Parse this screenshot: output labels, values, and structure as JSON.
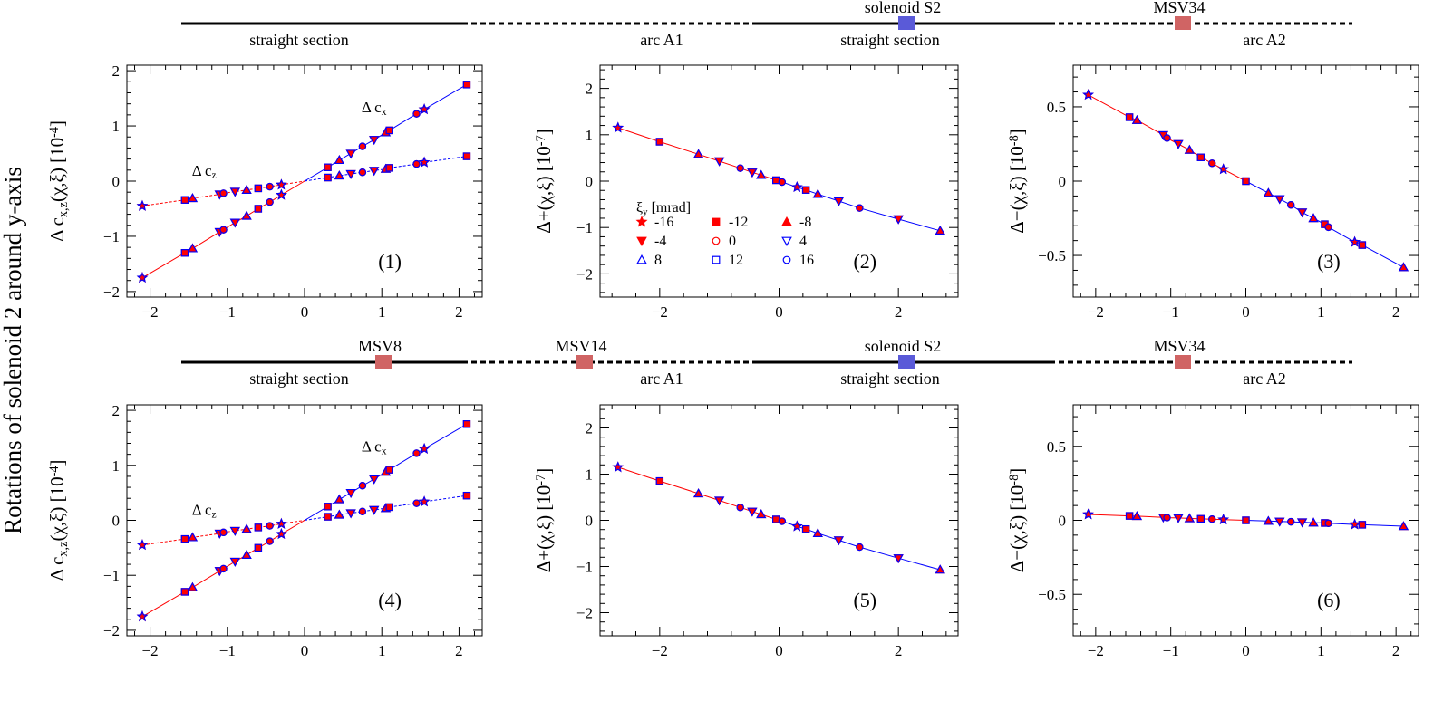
{
  "figure": {
    "row_title": "Rotations of solenoid 2 around y-axis"
  },
  "beamline": [
    {
      "segments": [
        {
          "label": "straight section",
          "style": "solid"
        },
        {
          "label": "arc A1",
          "style": "dashed"
        },
        {
          "label": "straight section",
          "style": "solid"
        },
        {
          "label": "arc A2",
          "style": "dashed"
        }
      ],
      "elements": [
        {
          "name": "solenoid S2",
          "color": "#5a5ad8"
        },
        {
          "name": "MSV34",
          "color": "#d06464"
        }
      ]
    },
    {
      "segments": [
        {
          "label": "straight section",
          "style": "solid"
        },
        {
          "label": "arc A1",
          "style": "dashed"
        },
        {
          "label": "straight section",
          "style": "solid"
        },
        {
          "label": "arc A2",
          "style": "dashed"
        }
      ],
      "elements": [
        {
          "name": "MSV8",
          "color": "#d06464"
        },
        {
          "name": "MSV14",
          "color": "#d06464"
        },
        {
          "name": "solenoid S2",
          "color": "#5a5ad8"
        },
        {
          "name": "MSV34",
          "color": "#d06464"
        }
      ]
    }
  ],
  "legend": {
    "title": "ξy [mrad]",
    "entries": [
      {
        "label": "-16",
        "marker": "star",
        "color": "#ff0000",
        "filled": true
      },
      {
        "label": "-12",
        "marker": "square",
        "color": "#ff0000",
        "filled": true
      },
      {
        "label": "-8",
        "marker": "tri-up",
        "color": "#ff0000",
        "filled": true
      },
      {
        "label": "-4",
        "marker": "tri-down",
        "color": "#ff0000",
        "filled": true
      },
      {
        "label": "0",
        "marker": "circle",
        "color": "#ff0000",
        "filled": false
      },
      {
        "label": "4",
        "marker": "tri-down",
        "color": "#0000ff",
        "filled": false
      },
      {
        "label": "8",
        "marker": "tri-up",
        "color": "#0000ff",
        "filled": false
      },
      {
        "label": "12",
        "marker": "square",
        "color": "#0000ff",
        "filled": false
      },
      {
        "label": "16",
        "marker": "circle",
        "color": "#0000ff",
        "filled": false
      }
    ]
  },
  "chart_data": [
    {
      "panel": "(1)",
      "type": "scatter",
      "ylabel": "Δ c_x,z(χ,ξ) [10^-4]",
      "xlim": [
        -2.3,
        2.3
      ],
      "ylim": [
        -2.1,
        2.1
      ],
      "xticks": [
        -2,
        -1,
        0,
        1,
        2
      ],
      "yticks": [
        -2,
        -1,
        0,
        1,
        2
      ],
      "annotations": [
        {
          "text": "Δ cx",
          "x": 0.9,
          "y": 1.25
        },
        {
          "text": "Δ cz",
          "x": -1.3,
          "y": 0.1
        }
      ],
      "series": [
        {
          "name": "Δ cx",
          "x": [
            -2.1,
            -1.55,
            -1.45,
            -1.1,
            -1.05,
            -0.9,
            -0.75,
            -0.6,
            -0.45,
            -0.3,
            0.3,
            0.45,
            0.6,
            0.75,
            0.9,
            1.05,
            1.1,
            1.45,
            1.55,
            2.1
          ],
          "y": [
            -1.75,
            -1.3,
            -1.22,
            -0.92,
            -0.88,
            -0.75,
            -0.63,
            -0.5,
            -0.38,
            -0.25,
            0.25,
            0.38,
            0.5,
            0.63,
            0.75,
            0.88,
            0.92,
            1.22,
            1.3,
            1.75
          ]
        },
        {
          "name": "Δ cz",
          "x": [
            -2.1,
            -1.55,
            -1.45,
            -1.1,
            -1.05,
            -0.9,
            -0.75,
            -0.6,
            -0.45,
            -0.3,
            0.3,
            0.45,
            0.6,
            0.75,
            0.9,
            1.05,
            1.1,
            1.45,
            1.55,
            2.1
          ],
          "y": [
            -0.45,
            -0.34,
            -0.31,
            -0.24,
            -0.22,
            -0.19,
            -0.16,
            -0.13,
            -0.1,
            -0.065,
            0.065,
            0.1,
            0.13,
            0.16,
            0.19,
            0.22,
            0.24,
            0.31,
            0.34,
            0.45
          ]
        }
      ]
    },
    {
      "panel": "(2)",
      "type": "scatter",
      "ylabel": "Δ+(χ,ξ) [10^-7]",
      "xlim": [
        -3,
        3
      ],
      "ylim": [
        -2.5,
        2.5
      ],
      "xticks": [
        -2,
        0,
        2
      ],
      "yticks": [
        -2,
        -1,
        0,
        1,
        2
      ],
      "series": [
        {
          "name": "Δ+",
          "x": [
            -2.7,
            -2.0,
            -1.35,
            -1.0,
            -0.65,
            -0.45,
            -0.3,
            -0.05,
            0.05,
            0.3,
            0.45,
            0.65,
            1.0,
            1.35,
            2.0,
            2.7
          ],
          "y": [
            1.15,
            0.85,
            0.58,
            0.43,
            0.28,
            0.19,
            0.13,
            0.02,
            -0.02,
            -0.13,
            -0.19,
            -0.28,
            -0.43,
            -0.58,
            -0.82,
            -1.07
          ]
        }
      ]
    },
    {
      "panel": "(3)",
      "type": "scatter",
      "ylabel": "Δ−(χ,ξ) [10^-8]",
      "xlim": [
        -2.3,
        2.3
      ],
      "ylim": [
        -0.78,
        0.78
      ],
      "xticks": [
        -2,
        -1,
        0,
        1,
        2
      ],
      "yticks": [
        -0.5,
        0,
        0.5
      ],
      "series": [
        {
          "name": "Δ−",
          "x": [
            -2.1,
            -1.55,
            -1.45,
            -1.1,
            -1.05,
            -0.9,
            -0.75,
            -0.6,
            -0.45,
            -0.3,
            0.0,
            0.3,
            0.45,
            0.6,
            0.75,
            0.9,
            1.05,
            1.1,
            1.45,
            1.55,
            2.1
          ],
          "y": [
            0.58,
            0.43,
            0.41,
            0.31,
            0.29,
            0.25,
            0.21,
            0.16,
            0.12,
            0.08,
            0.0,
            -0.08,
            -0.12,
            -0.16,
            -0.21,
            -0.25,
            -0.29,
            -0.31,
            -0.41,
            -0.43,
            -0.58
          ]
        }
      ]
    },
    {
      "panel": "(4)",
      "type": "scatter",
      "ylabel": "Δ c_x,z(χ,ξ) [10^-4]",
      "xlim": [
        -2.3,
        2.3
      ],
      "ylim": [
        -2.1,
        2.1
      ],
      "xticks": [
        -2,
        -1,
        0,
        1,
        2
      ],
      "yticks": [
        -2,
        -1,
        0,
        1,
        2
      ],
      "annotations": [
        {
          "text": "Δ cx",
          "x": 0.9,
          "y": 1.25
        },
        {
          "text": "Δ cz",
          "x": -1.3,
          "y": 0.1
        }
      ],
      "series": [
        {
          "name": "Δ cx",
          "x": [
            -2.1,
            -1.55,
            -1.45,
            -1.1,
            -1.05,
            -0.9,
            -0.75,
            -0.6,
            -0.45,
            -0.3,
            0.3,
            0.45,
            0.6,
            0.75,
            0.9,
            1.05,
            1.1,
            1.45,
            1.55,
            2.1
          ],
          "y": [
            -1.75,
            -1.3,
            -1.22,
            -0.92,
            -0.88,
            -0.75,
            -0.63,
            -0.5,
            -0.38,
            -0.25,
            0.25,
            0.38,
            0.5,
            0.63,
            0.75,
            0.88,
            0.92,
            1.22,
            1.3,
            1.75
          ]
        },
        {
          "name": "Δ cz",
          "x": [
            -2.1,
            -1.55,
            -1.45,
            -1.1,
            -1.05,
            -0.9,
            -0.75,
            -0.6,
            -0.45,
            -0.3,
            0.3,
            0.45,
            0.6,
            0.75,
            0.9,
            1.05,
            1.1,
            1.45,
            1.55,
            2.1
          ],
          "y": [
            -0.45,
            -0.34,
            -0.31,
            -0.24,
            -0.22,
            -0.19,
            -0.16,
            -0.13,
            -0.1,
            -0.065,
            0.065,
            0.1,
            0.13,
            0.16,
            0.19,
            0.22,
            0.24,
            0.31,
            0.34,
            0.45
          ]
        }
      ]
    },
    {
      "panel": "(5)",
      "type": "scatter",
      "ylabel": "Δ+(χ,ξ) [10^-7]",
      "xlim": [
        -3,
        3
      ],
      "ylim": [
        -2.5,
        2.5
      ],
      "xticks": [
        -2,
        0,
        2
      ],
      "yticks": [
        -2,
        -1,
        0,
        1,
        2
      ],
      "series": [
        {
          "name": "Δ+",
          "x": [
            -2.7,
            -2.0,
            -1.35,
            -1.0,
            -0.65,
            -0.45,
            -0.3,
            -0.05,
            0.05,
            0.3,
            0.45,
            0.65,
            1.0,
            1.35,
            2.0,
            2.7
          ],
          "y": [
            1.15,
            0.85,
            0.58,
            0.43,
            0.28,
            0.19,
            0.13,
            0.02,
            -0.02,
            -0.13,
            -0.19,
            -0.28,
            -0.43,
            -0.58,
            -0.82,
            -1.07
          ]
        }
      ]
    },
    {
      "panel": "(6)",
      "type": "scatter",
      "ylabel": "Δ−(χ,ξ) [10^-8]",
      "xlim": [
        -2.3,
        2.3
      ],
      "ylim": [
        -0.78,
        0.78
      ],
      "xticks": [
        -2,
        -1,
        0,
        1,
        2
      ],
      "yticks": [
        -0.5,
        0,
        0.5
      ],
      "series": [
        {
          "name": "Δ−",
          "x": [
            -2.1,
            -1.55,
            -1.45,
            -1.1,
            -1.05,
            -0.9,
            -0.75,
            -0.6,
            -0.45,
            -0.3,
            0.0,
            0.3,
            0.45,
            0.6,
            0.75,
            0.9,
            1.05,
            1.1,
            1.45,
            1.55,
            2.1
          ],
          "y": [
            0.04,
            0.03,
            0.028,
            0.02,
            0.018,
            0.016,
            0.013,
            0.01,
            0.008,
            0.005,
            0.0,
            -0.005,
            -0.008,
            -0.01,
            -0.013,
            -0.016,
            -0.018,
            -0.02,
            -0.028,
            -0.03,
            -0.04
          ]
        }
      ]
    }
  ]
}
